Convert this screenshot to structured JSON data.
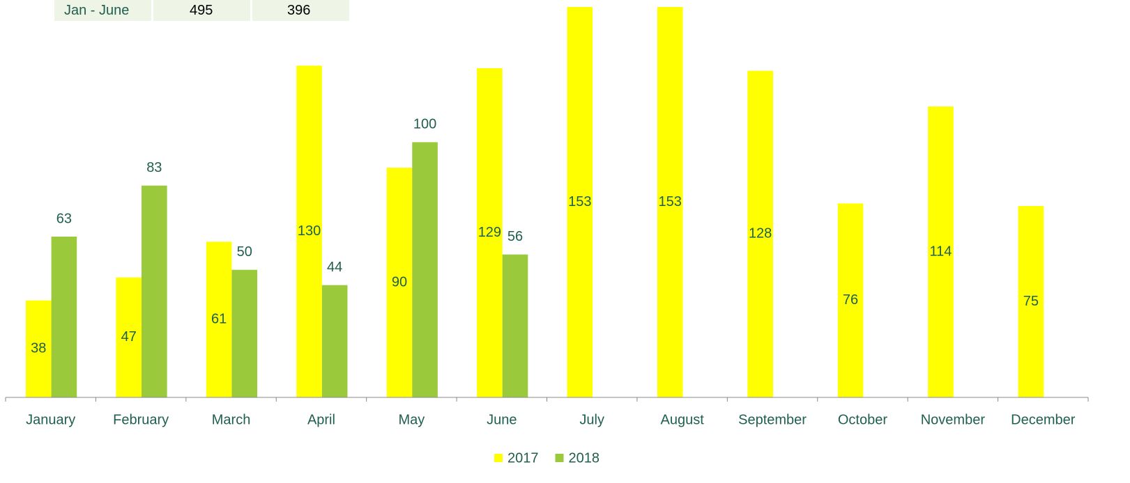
{
  "table": {
    "rows": [
      [
        "Jan - June",
        "495",
        "396"
      ]
    ]
  },
  "chart_data": {
    "type": "bar",
    "categories": [
      "January",
      "February",
      "March",
      "April",
      "May",
      "June",
      "July",
      "August",
      "September",
      "October",
      "November",
      "December"
    ],
    "series": [
      {
        "name": "2017",
        "color": "#ffff00",
        "values": [
          38,
          47,
          61,
          130,
          90,
          129,
          153,
          153,
          128,
          76,
          114,
          75
        ]
      },
      {
        "name": "2018",
        "color": "#9aca3c",
        "values": [
          63,
          83,
          50,
          44,
          100,
          56,
          null,
          null,
          null,
          null,
          null,
          null
        ]
      }
    ],
    "ylim": [
      0,
      153
    ],
    "legend": "bottom"
  }
}
